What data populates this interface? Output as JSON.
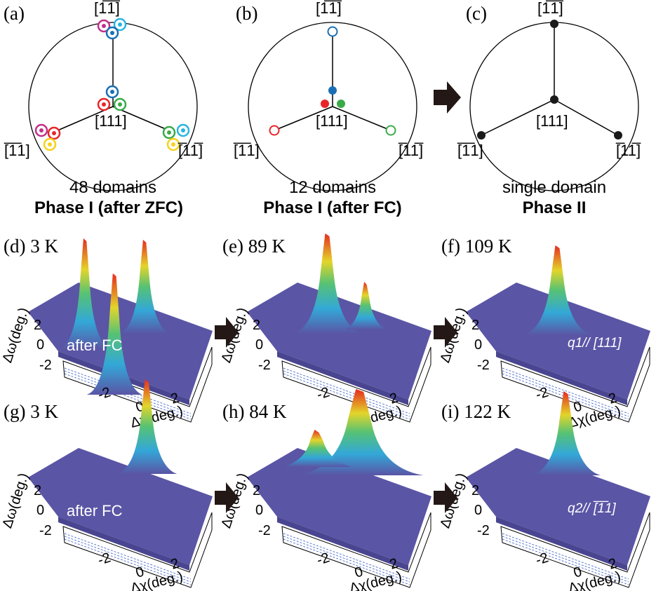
{
  "top_panels": [
    {
      "label": "(a)",
      "top": "[1̅1̅]",
      "center": "[111]",
      "left": "[̅1̅1]",
      "right": "[̅11̅]",
      "caption": "48 domains",
      "subcaption": "Phase I (after ZFC)"
    },
    {
      "label": "(b)",
      "top": "[1̅1̅]",
      "center": "[111]",
      "left": "[̅1̅1]",
      "right": "[̅11̅]",
      "caption": "12 domains",
      "subcaption": "Phase I (after FC)"
    },
    {
      "label": "(c)",
      "top": "[1̅1̅]",
      "center": "[111]",
      "left": "[̅1̅1]",
      "right": "[̅11̅]",
      "caption": "single domain",
      "subcaption": "Phase II"
    }
  ],
  "surface_panels": [
    {
      "label": "(d)",
      "temp": "3 K",
      "note": "after FC"
    },
    {
      "label": "(e)",
      "temp": "89 K",
      "note": ""
    },
    {
      "label": "(f)",
      "temp": "109 K",
      "note": "q1// [111]"
    },
    {
      "label": "(g)",
      "temp": "3 K",
      "note": "after FC"
    },
    {
      "label": "(h)",
      "temp": "84 K",
      "note": ""
    },
    {
      "label": "(i)",
      "temp": "122 K",
      "note": "q2// [̅1̅1]"
    }
  ],
  "axes": {
    "x_label": "Δχ(deg.)",
    "y_label": "Δω(deg.)",
    "x_ticks": [
      "-2",
      "0",
      "2"
    ],
    "y_ticks": [
      "2",
      "0",
      "-2"
    ]
  },
  "colors": {
    "blue_surface": "#5a55a5",
    "domain_blue": "#1a6fb4",
    "domain_red": "#e8262a",
    "domain_green": "#3aaa48",
    "domain_magenta": "#c0308a",
    "domain_cyan": "#2ab4e2",
    "domain_yellow": "#f7d11c",
    "dark_dot": "#1a1a1a"
  }
}
